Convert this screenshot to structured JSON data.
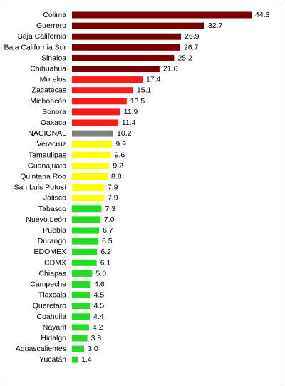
{
  "chart_data": {
    "type": "bar",
    "orientation": "horizontal",
    "title": "",
    "xlabel": "",
    "ylabel": "",
    "xlim": [
      0,
      46
    ],
    "grid": false,
    "legend": "none",
    "categories": [
      "Colima",
      "Guerrero",
      "Baja California",
      "Baja California Sur",
      "Sinaloa",
      "Chihuahua",
      "Morelos",
      "Zacatecas",
      "Michoacán",
      "Sonora",
      "Oaxaca",
      "NACIONAL",
      "Veracruz",
      "Tamaulipas",
      "Guanajuato",
      "Quintana Roo",
      "San Luis Potosí",
      "Jalisco",
      "Tabasco",
      "Nuevo León",
      "Puebla",
      "Durango",
      "EDOMEX",
      "CDMX",
      "Chiapas",
      "Campeche",
      "Tlaxcala",
      "Querétaro",
      "Coahuila",
      "Nayarit",
      "Hidalgo",
      "Aguascalientes",
      "Yucatán"
    ],
    "values": [
      44.3,
      32.7,
      26.9,
      26.7,
      25.2,
      21.6,
      17.4,
      15.1,
      13.5,
      11.9,
      11.4,
      10.2,
      9.9,
      9.6,
      9.2,
      8.8,
      7.9,
      7.9,
      7.3,
      7.0,
      6.7,
      6.5,
      6.2,
      6.1,
      5.0,
      4.6,
      4.5,
      4.5,
      4.4,
      4.2,
      3.8,
      3.0,
      1.4
    ],
    "value_labels": [
      "44.3",
      "32.7",
      "26.9",
      "26.7",
      "25.2",
      "21.6",
      "17.4",
      "15.1",
      "13.5",
      "11.9",
      "11.4",
      "10.2",
      "9.9",
      "9.6",
      "9.2",
      "8.8",
      "7.9",
      "7.9",
      "7.3",
      "7.0",
      "6.7",
      "6.5",
      "6.2",
      "6.1",
      "5.0",
      "4.6",
      "4.5",
      "4.5",
      "4.4",
      "4.2",
      "3.8",
      "3.0",
      "1.4"
    ],
    "colors": [
      "#7b0000",
      "#7b0000",
      "#7b0000",
      "#7b0000",
      "#7b0000",
      "#7b0000",
      "#ff1a1a",
      "#ff1a1a",
      "#ff1a1a",
      "#ff1a1a",
      "#ff1a1a",
      "#808080",
      "#ffff00",
      "#ffff00",
      "#ffff00",
      "#ffff00",
      "#ffff00",
      "#ffff00",
      "#22dd22",
      "#22dd22",
      "#22dd22",
      "#22dd22",
      "#22dd22",
      "#22dd22",
      "#22dd22",
      "#22dd22",
      "#22dd22",
      "#22dd22",
      "#22dd22",
      "#22dd22",
      "#22dd22",
      "#22dd22",
      "#22dd22"
    ]
  }
}
